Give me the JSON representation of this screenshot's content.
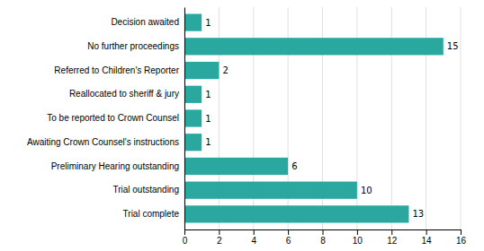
{
  "chart_data": {
    "type": "bar",
    "orientation": "horizontal",
    "categories": [
      "Trial complete",
      "Trial outstanding",
      "Preliminary Hearing outstanding",
      "Awaiting Crown Counsel's instructions",
      "To be reported to Crown Counsel",
      "Reallocated to sheriff & jury",
      "Referred to Children's Reporter",
      "No further proceedings",
      "Decision awaited"
    ],
    "values": [
      13,
      10,
      6,
      1,
      1,
      1,
      2,
      15,
      1
    ],
    "color": "#2aa8a0",
    "xlim": [
      0,
      16
    ],
    "xticks": [
      0,
      2,
      4,
      6,
      8,
      10,
      12,
      14,
      16
    ],
    "grid": true,
    "data_labels": true
  }
}
